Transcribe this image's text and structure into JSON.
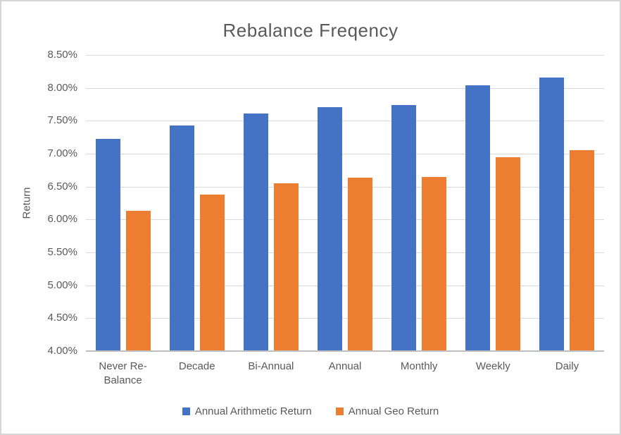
{
  "chart_data": {
    "type": "bar",
    "title": "Rebalance Freqency",
    "xlabel": "",
    "ylabel": "Return",
    "categories": [
      "Never Re-Balance",
      "Decade",
      "Bi-Annual",
      "Annual",
      "Monthly",
      "Weekly",
      "Daily"
    ],
    "series": [
      {
        "name": "Annual Arithmetic Return",
        "color": "#4472C4",
        "values": [
          7.23,
          7.43,
          7.61,
          7.71,
          7.74,
          8.04,
          8.16
        ]
      },
      {
        "name": "Annual Geo Return",
        "color": "#ED7D31",
        "values": [
          6.13,
          6.38,
          6.55,
          6.64,
          6.65,
          6.95,
          7.05
        ]
      }
    ],
    "ylim": [
      4.0,
      8.5
    ],
    "ytick_step": 0.5,
    "ytick_labels": [
      "8.50%",
      "8.00%",
      "7.50%",
      "7.00%",
      "6.50%",
      "6.00%",
      "5.50%",
      "5.00%",
      "4.50%",
      "4.00%"
    ],
    "grid": true,
    "legend_position": "bottom",
    "colors": {
      "gridline": "#D9D9D9",
      "axis_line": "#BFBFBF",
      "text": "#595959",
      "background": "#FFFFFF",
      "border": "#D6D6D6"
    }
  }
}
